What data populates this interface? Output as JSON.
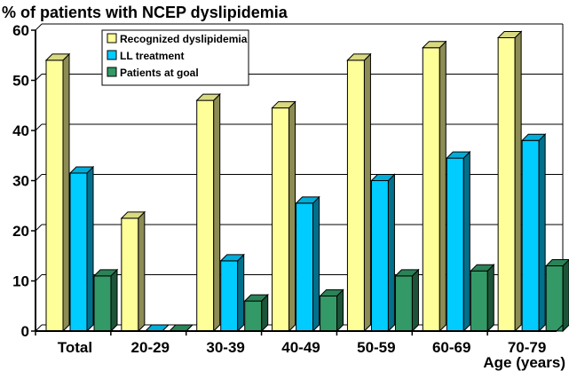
{
  "chart_data": {
    "type": "bar",
    "title": "% of patients with NCEP dyslipidemia",
    "xlabel": "Age (years)",
    "ylabel": "",
    "categories": [
      "Total",
      "20-29",
      "30-39",
      "40-49",
      "50-59",
      "60-69",
      "70-79"
    ],
    "series": [
      {
        "name": "Recognized dyslipidemia",
        "color": "#ffff99",
        "values": [
          54,
          22.5,
          46,
          44.5,
          54,
          56.5,
          58.5
        ]
      },
      {
        "name": "LL treatment",
        "color": "#00ccff",
        "values": [
          31.5,
          0,
          14,
          25.5,
          30,
          34.5,
          38
        ]
      },
      {
        "name": "Patients at goal",
        "color": "#339966",
        "values": [
          11,
          0,
          6,
          7,
          11,
          12,
          13
        ]
      }
    ],
    "ylim": [
      0,
      60
    ],
    "yticks": [
      0,
      10,
      20,
      30,
      40,
      50,
      60
    ],
    "grid": true,
    "legend_position": "top-left",
    "style": "3d-bar"
  }
}
